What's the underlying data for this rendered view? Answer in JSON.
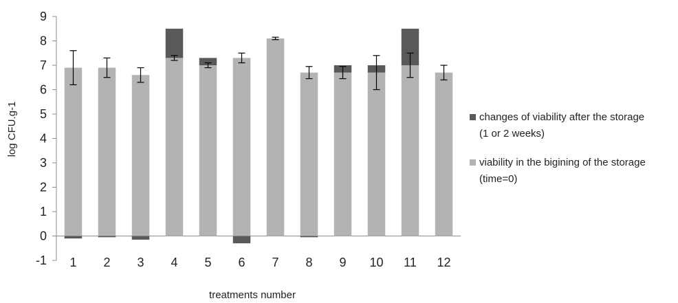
{
  "chart_data": {
    "type": "bar",
    "stacked": true,
    "categories": [
      "1",
      "2",
      "3",
      "4",
      "5",
      "6",
      "7",
      "8",
      "9",
      "10",
      "11",
      "12"
    ],
    "series": [
      {
        "name": "changes of viability after the storage (1 or 2 weeks)",
        "color": "#595959",
        "values": [
          -0.1,
          -0.05,
          -0.15,
          1.2,
          0.3,
          -0.3,
          0.0,
          -0.05,
          0.3,
          0.3,
          1.5,
          0.0
        ]
      },
      {
        "name": "viability in the bigining of the storage (time=0)",
        "color": "#b3b3b3",
        "values": [
          6.9,
          6.9,
          6.6,
          7.3,
          7.0,
          7.3,
          8.1,
          6.7,
          6.7,
          6.7,
          7.0,
          6.7
        ],
        "error": [
          0.7,
          0.4,
          0.3,
          0.1,
          0.1,
          0.2,
          0.05,
          0.25,
          0.25,
          0.7,
          0.5,
          0.3
        ]
      }
    ],
    "ylim": [
      -1,
      9
    ],
    "yticks": [
      -1,
      0,
      1,
      2,
      3,
      4,
      5,
      6,
      7,
      8,
      9
    ],
    "xlabel": "treatments number",
    "ylabel": "log CFU.g-1",
    "legend": {
      "position": "right",
      "lines": [
        [
          "changes of viability after the storage",
          "(1 or 2 weeks)"
        ],
        [
          "viability in the bigining of the storage",
          "(time=0)"
        ]
      ]
    },
    "grid": false
  }
}
